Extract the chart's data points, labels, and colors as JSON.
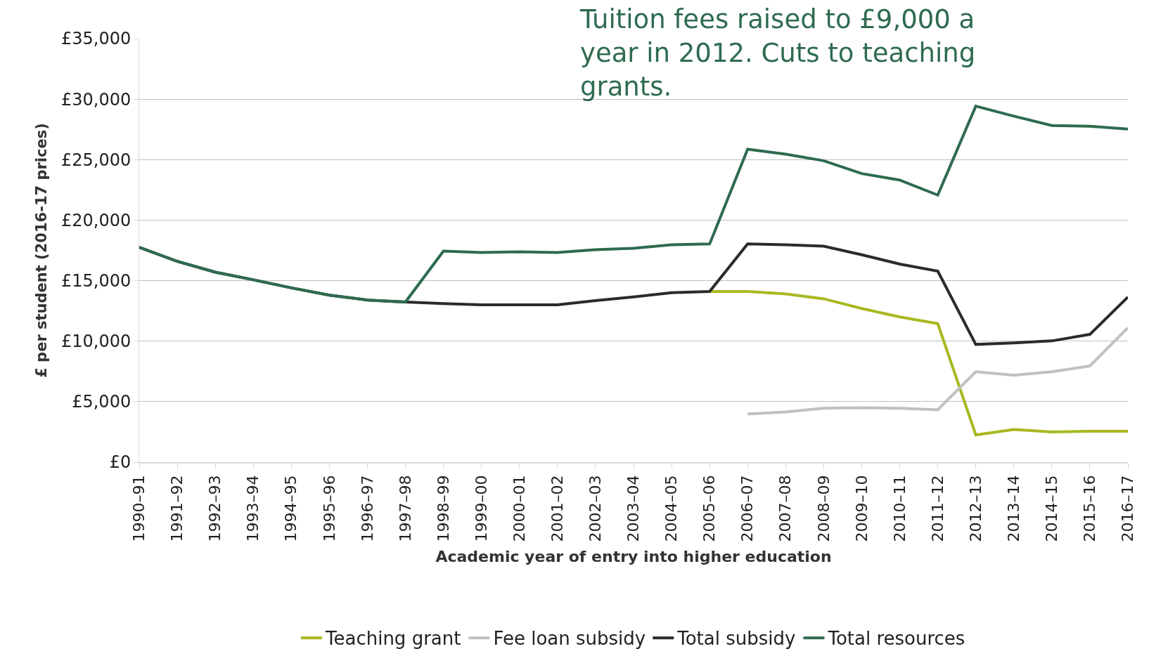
{
  "chart_data": {
    "type": "line",
    "xlabel": "Academic year of entry into higher education",
    "ylabel": "£ per student (2016-17 prices)",
    "annotations": [
      "Tuition fees raised to £9,000 a year in 2012. Cuts to teaching grants."
    ],
    "categories": [
      "1990–91",
      "1991–92",
      "1992–93",
      "1993–94",
      "1994–95",
      "1995–96",
      "1996–97",
      "1997–98",
      "1998–99",
      "1999–00",
      "2000–01",
      "2001–02",
      "2002–03",
      "2003–04",
      "2004–05",
      "2005–06",
      "2006–07",
      "2007–08",
      "2008–09",
      "2009–10",
      "2010–11",
      "2011–12",
      "2012–13",
      "2013–14",
      "2014–15",
      "2015–16",
      "2016–17"
    ],
    "series": [
      {
        "name": "Teaching grant",
        "color": "#a8b820",
        "values": [
          null,
          null,
          null,
          null,
          null,
          null,
          null,
          null,
          null,
          null,
          null,
          null,
          null,
          null,
          null,
          14100,
          14100,
          13900,
          13500,
          12700,
          12000,
          11450,
          2250,
          2700,
          2500,
          2550,
          2550
        ]
      },
      {
        "name": "Fee loan subsidy",
        "color": "#c0c0c0",
        "values": [
          null,
          null,
          null,
          null,
          null,
          null,
          null,
          null,
          null,
          null,
          null,
          null,
          null,
          null,
          null,
          null,
          3970,
          4150,
          4450,
          4500,
          4450,
          4330,
          7470,
          7180,
          7470,
          7950,
          11100
        ]
      },
      {
        "name": "Total subsidy",
        "color": "#2b2b2b",
        "values": [
          17750,
          16600,
          15700,
          15070,
          14400,
          13800,
          13400,
          13230,
          13100,
          13000,
          13000,
          13000,
          13350,
          13650,
          14000,
          14100,
          18030,
          17970,
          17850,
          17140,
          16370,
          15780,
          9730,
          9850,
          10020,
          10560,
          13640
        ]
      },
      {
        "name": "Total resources",
        "color": "#2e6b4f",
        "values": [
          17750,
          16600,
          15700,
          15070,
          14400,
          13800,
          13400,
          13230,
          17440,
          17320,
          17380,
          17320,
          17560,
          17680,
          17970,
          18030,
          25860,
          25450,
          24910,
          23850,
          23310,
          22070,
          29420,
          28590,
          27820,
          27760,
          27520
        ]
      }
    ],
    "ylim": [
      0,
      35000
    ],
    "yticks": [
      {
        "value": 0,
        "label": "£0"
      },
      {
        "value": 5000,
        "label": "£5,000"
      },
      {
        "value": 10000,
        "label": "£10,000"
      },
      {
        "value": 15000,
        "label": "£15,000"
      },
      {
        "value": 20000,
        "label": "£20,000"
      },
      {
        "value": 25000,
        "label": "£25,000"
      },
      {
        "value": 30000,
        "label": "£30,000"
      },
      {
        "value": 35000,
        "label": "£35,000"
      }
    ],
    "grid": "y",
    "legend": "bottom",
    "marker": "none",
    "line_style": "solid"
  }
}
